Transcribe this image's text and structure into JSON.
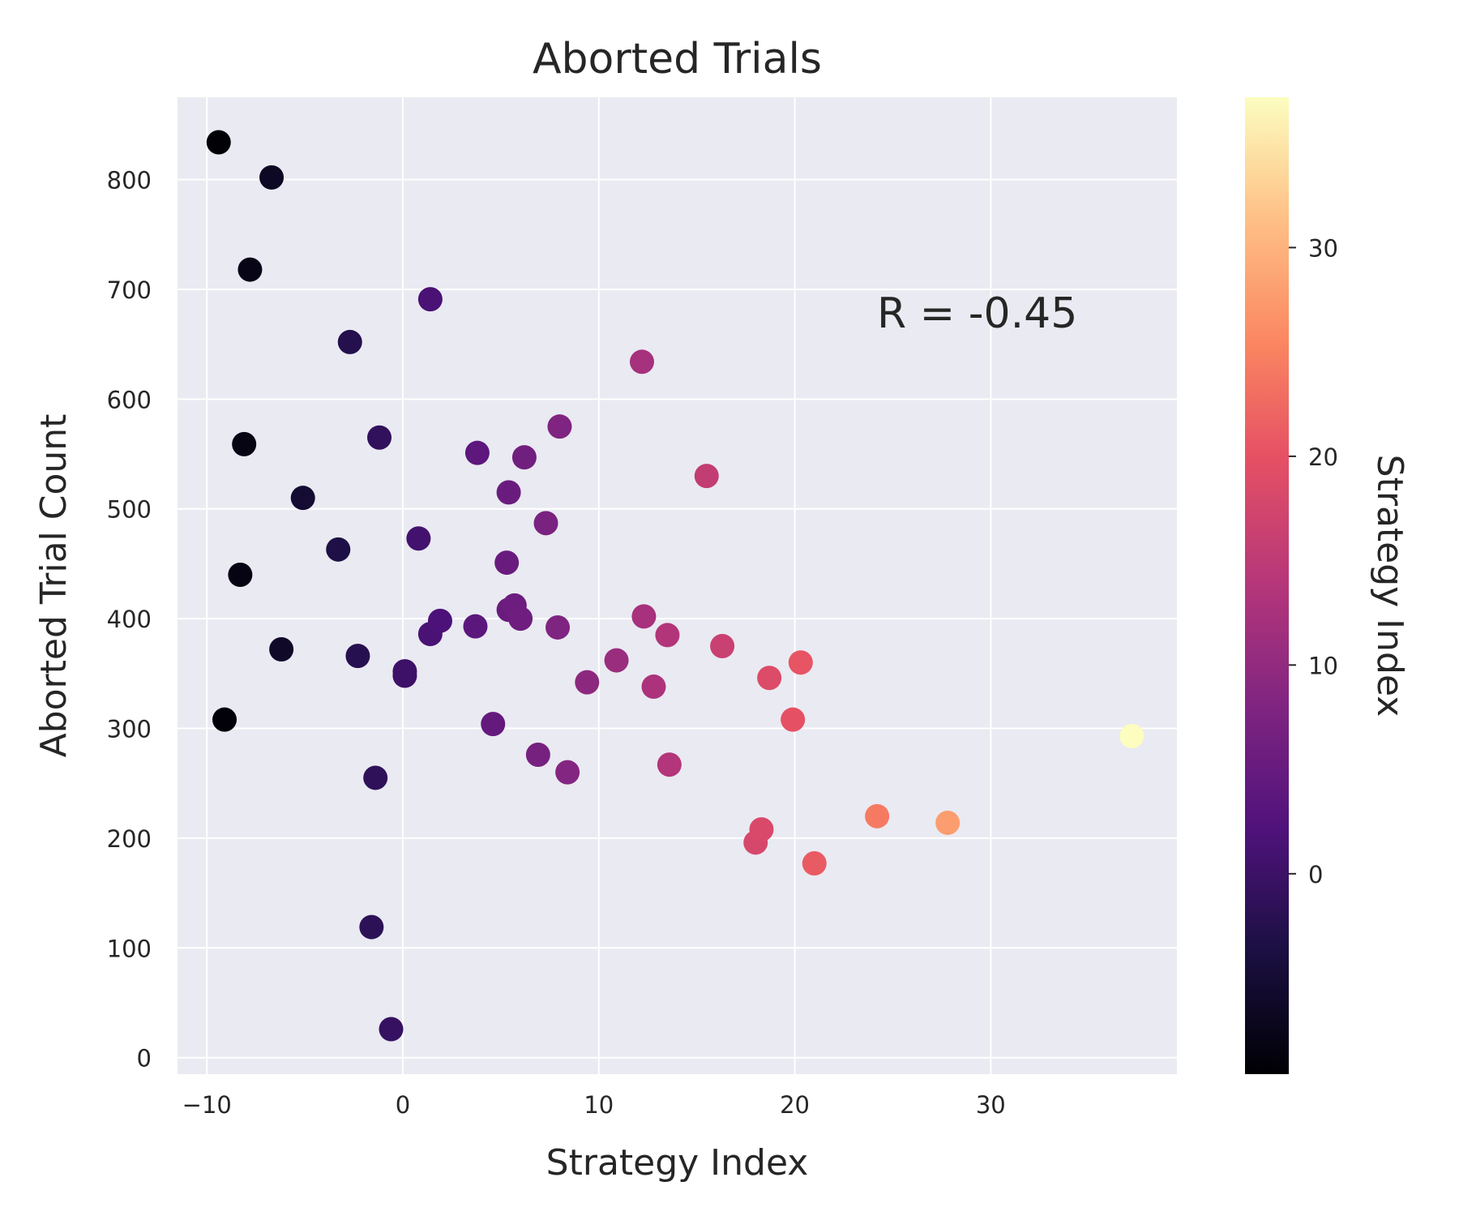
{
  "chart_data": {
    "type": "scatter",
    "title": "Aborted Trials",
    "xlabel": "Strategy Index",
    "ylabel": "Aborted Trial Count",
    "annotation": "R = -0.45",
    "xlim": [
      -11.5,
      39.5
    ],
    "ylim": [
      -15,
      875
    ],
    "xticks": [
      -10,
      0,
      10,
      20,
      30
    ],
    "yticks": [
      0,
      100,
      200,
      300,
      400,
      500,
      600,
      700,
      800
    ],
    "xtick_labels": [
      "−10",
      "0",
      "10",
      "20",
      "30"
    ],
    "ytick_labels": [
      "0",
      "100",
      "200",
      "300",
      "400",
      "500",
      "600",
      "700",
      "800"
    ],
    "grid": true,
    "background_color": "#EAEAF2",
    "colormap": "magma",
    "colorbar": {
      "label": "Strategy Index",
      "range": [
        -9.6,
        37.2
      ],
      "ticks": [
        0,
        10,
        20,
        30
      ],
      "tick_labels": [
        "0",
        "10",
        "20",
        "30"
      ]
    },
    "points": [
      {
        "x": -9.4,
        "y": 834
      },
      {
        "x": -6.7,
        "y": 802
      },
      {
        "x": -7.8,
        "y": 718
      },
      {
        "x": -8.1,
        "y": 559
      },
      {
        "x": -8.3,
        "y": 440
      },
      {
        "x": -9.1,
        "y": 308
      },
      {
        "x": -6.2,
        "y": 372
      },
      {
        "x": -5.1,
        "y": 510
      },
      {
        "x": -3.3,
        "y": 463
      },
      {
        "x": -2.7,
        "y": 652
      },
      {
        "x": -2.3,
        "y": 366
      },
      {
        "x": -1.2,
        "y": 565
      },
      {
        "x": -1.4,
        "y": 255
      },
      {
        "x": -1.6,
        "y": 119
      },
      {
        "x": -0.6,
        "y": 26
      },
      {
        "x": 0.1,
        "y": 348
      },
      {
        "x": 0.1,
        "y": 352
      },
      {
        "x": 0.8,
        "y": 473
      },
      {
        "x": 1.4,
        "y": 691
      },
      {
        "x": 1.4,
        "y": 386
      },
      {
        "x": 1.9,
        "y": 398
      },
      {
        "x": 3.7,
        "y": 393
      },
      {
        "x": 3.8,
        "y": 551
      },
      {
        "x": 4.6,
        "y": 304
      },
      {
        "x": 5.3,
        "y": 451
      },
      {
        "x": 5.4,
        "y": 515
      },
      {
        "x": 5.4,
        "y": 408
      },
      {
        "x": 5.7,
        "y": 412
      },
      {
        "x": 6.0,
        "y": 400
      },
      {
        "x": 6.2,
        "y": 547
      },
      {
        "x": 6.9,
        "y": 276
      },
      {
        "x": 7.3,
        "y": 487
      },
      {
        "x": 7.9,
        "y": 392
      },
      {
        "x": 8.0,
        "y": 575
      },
      {
        "x": 8.4,
        "y": 260
      },
      {
        "x": 9.4,
        "y": 342
      },
      {
        "x": 10.9,
        "y": 362
      },
      {
        "x": 12.2,
        "y": 634
      },
      {
        "x": 12.3,
        "y": 402
      },
      {
        "x": 12.8,
        "y": 338
      },
      {
        "x": 13.5,
        "y": 385
      },
      {
        "x": 13.6,
        "y": 267
      },
      {
        "x": 15.5,
        "y": 530
      },
      {
        "x": 16.3,
        "y": 375
      },
      {
        "x": 18.0,
        "y": 196
      },
      {
        "x": 18.3,
        "y": 208
      },
      {
        "x": 18.7,
        "y": 346
      },
      {
        "x": 19.9,
        "y": 308
      },
      {
        "x": 20.3,
        "y": 360
      },
      {
        "x": 21.0,
        "y": 177
      },
      {
        "x": 24.2,
        "y": 220
      },
      {
        "x": 27.8,
        "y": 214
      },
      {
        "x": 37.2,
        "y": 293
      }
    ]
  }
}
